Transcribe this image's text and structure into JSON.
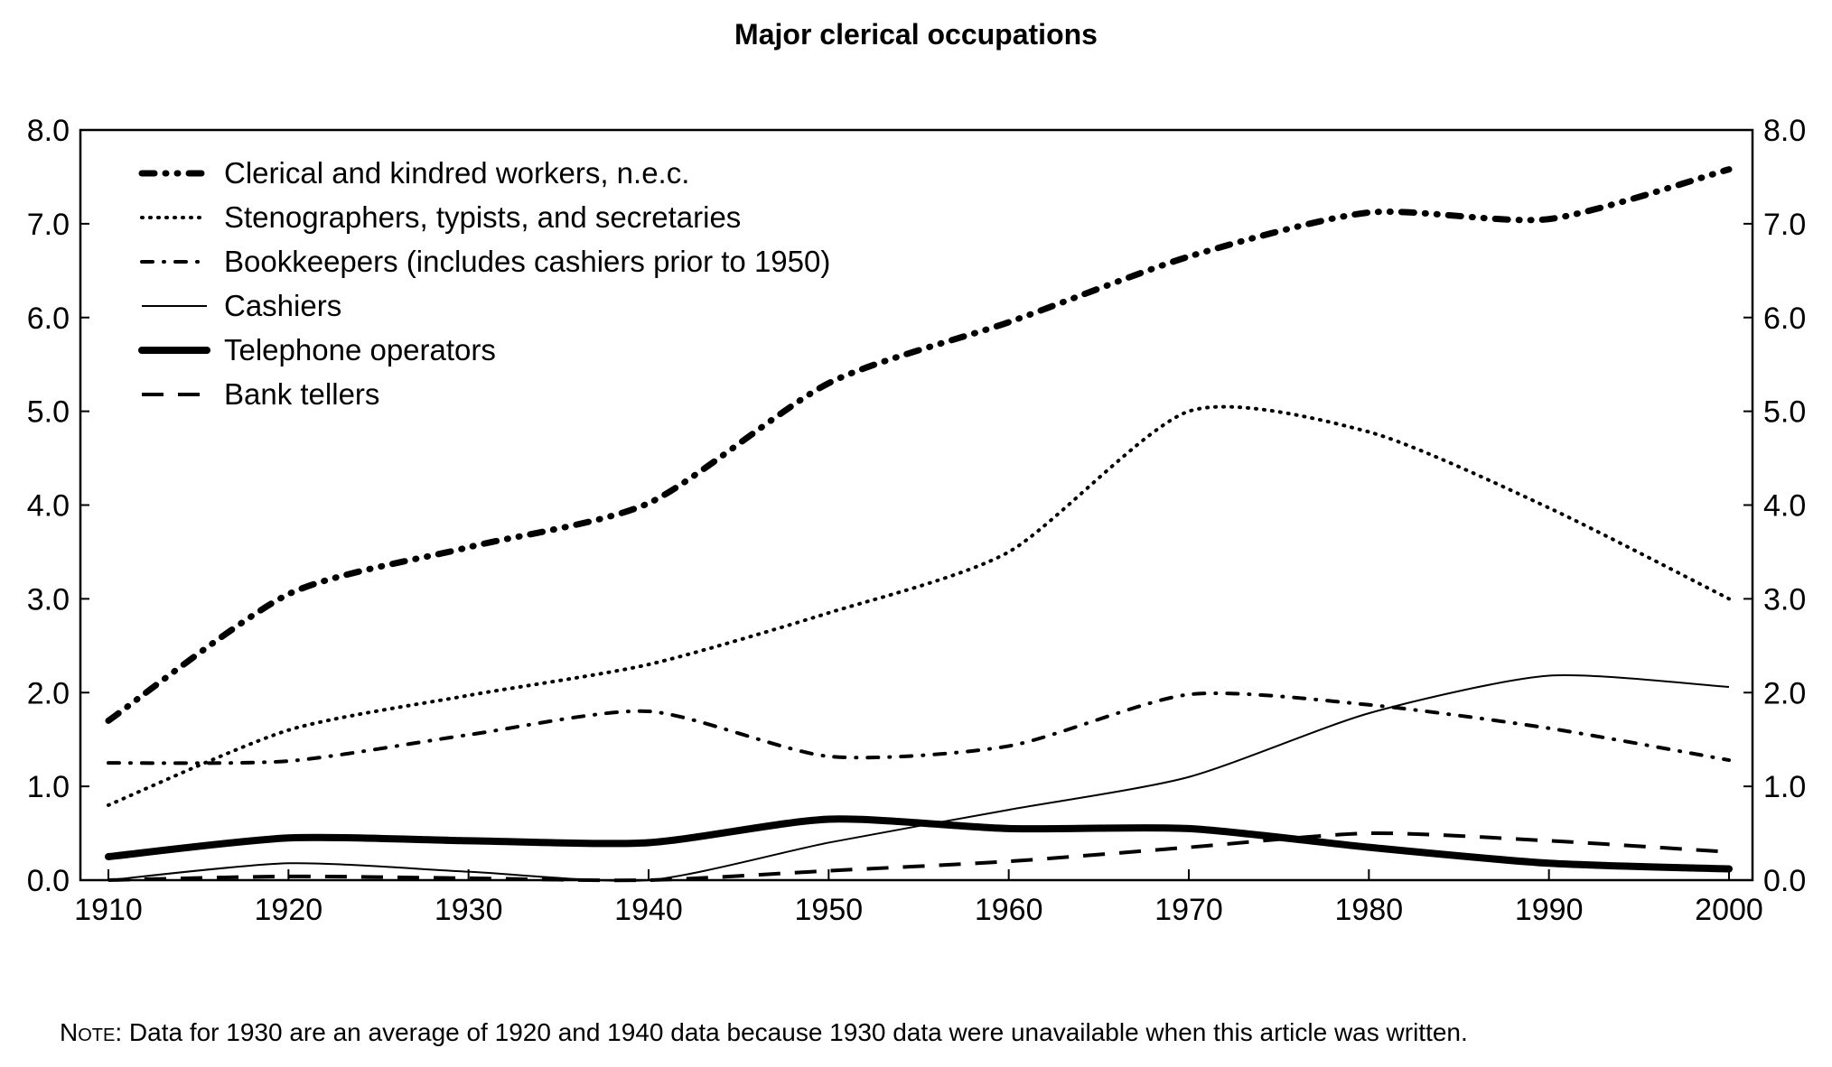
{
  "title": "Major clerical occupations",
  "note_label": "Note:",
  "note_text": " Data for 1930 are an average of 1920 and 1940 data because 1930 data were unavailable when this article was written.",
  "chart_data": {
    "type": "line",
    "title": "Major clerical occupations",
    "xlabel": "",
    "ylabel": "",
    "x": [
      1910,
      1920,
      1930,
      1940,
      1950,
      1960,
      1970,
      1980,
      1990,
      2000
    ],
    "xlim": [
      1910,
      2000
    ],
    "ylim": [
      0,
      8
    ],
    "x_ticks": [
      "1910",
      "1920",
      "1930",
      "1940",
      "1950",
      "1960",
      "1970",
      "1980",
      "1990",
      "2000"
    ],
    "y_ticks": [
      "0.0",
      "1.0",
      "2.0",
      "3.0",
      "4.0",
      "5.0",
      "6.0",
      "7.0",
      "8.0"
    ],
    "y_axis_both_sides": true,
    "grid": false,
    "legend_position": "top-left",
    "series": [
      {
        "name": "Clerical and kindred workers, n.e.c.",
        "style": "thick-dash-dot-dot",
        "color": "#000000",
        "values": [
          1.7,
          3.05,
          3.55,
          4.02,
          5.3,
          5.95,
          6.65,
          7.12,
          7.05,
          7.58
        ]
      },
      {
        "name": "Stenographers, typists, and secretaries",
        "style": "dotted",
        "color": "#000000",
        "values": [
          0.8,
          1.6,
          1.97,
          2.3,
          2.85,
          3.5,
          5.0,
          4.78,
          3.97,
          3.0
        ]
      },
      {
        "name": "Bookkeepers (includes cashiers prior to 1950)",
        "style": "dash-dot",
        "color": "#000000",
        "values": [
          1.25,
          1.27,
          1.55,
          1.8,
          1.32,
          1.43,
          1.98,
          1.87,
          1.62,
          1.28
        ]
      },
      {
        "name": "Cashiers",
        "style": "thin-solid",
        "color": "#000000",
        "values": [
          0.0,
          0.18,
          0.09,
          0.0,
          0.4,
          0.75,
          1.1,
          1.78,
          2.18,
          2.06
        ]
      },
      {
        "name": "Telephone operators",
        "style": "thick-solid",
        "color": "#000000",
        "values": [
          0.25,
          0.45,
          0.42,
          0.4,
          0.65,
          0.55,
          0.55,
          0.35,
          0.18,
          0.12
        ]
      },
      {
        "name": "Bank tellers",
        "style": "dashed",
        "color": "#000000",
        "values": [
          0.0,
          0.04,
          0.02,
          0.0,
          0.1,
          0.2,
          0.35,
          0.5,
          0.42,
          0.3
        ]
      }
    ]
  }
}
